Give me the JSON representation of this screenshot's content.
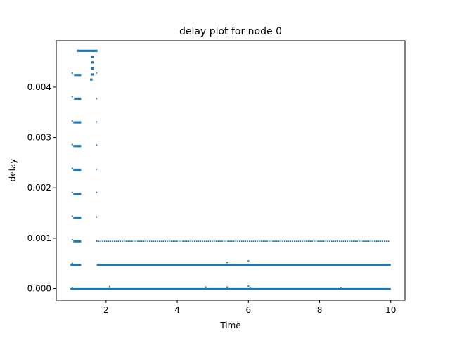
{
  "chart_data": {
    "type": "scatter",
    "title": "delay plot for node 0",
    "xlabel": "Time",
    "ylabel": "delay",
    "xlim": [
      0.6,
      10.4
    ],
    "ylim": [
      -0.00023,
      0.00492
    ],
    "xticks": [
      2,
      4,
      6,
      8,
      10
    ],
    "xtick_labels": [
      "2",
      "4",
      "6",
      "8",
      "10"
    ],
    "yticks": [
      0.0,
      0.001,
      0.002,
      0.003,
      0.004
    ],
    "ytick_labels": [
      "0.000",
      "0.001",
      "0.002",
      "0.003",
      "0.004"
    ],
    "grid": false,
    "legend": "none",
    "marker_color": "#1f77b4",
    "series": [
      {
        "description_bands": "horizontal bands of dense points (start, end, delay)",
        "bands": [
          {
            "x": [
              1.0,
              10.0
            ],
            "y": 0.0
          },
          {
            "x": [
              1.74,
              10.0
            ],
            "y": 0.00047
          },
          {
            "x": [
              1.0,
              1.3
            ],
            "y": 0.00047
          },
          {
            "x": [
              1.74,
              9.95
            ],
            "y": 0.00094,
            "sparse": true
          },
          {
            "x": [
              1.08,
              1.3
            ],
            "y": 0.00094
          },
          {
            "x": [
              1.08,
              1.3
            ],
            "y": 0.00141
          },
          {
            "x": [
              1.08,
              1.3
            ],
            "y": 0.00188
          },
          {
            "x": [
              1.08,
              1.3
            ],
            "y": 0.00236
          },
          {
            "x": [
              1.08,
              1.3
            ],
            "y": 0.00283
          },
          {
            "x": [
              1.08,
              1.3
            ],
            "y": 0.0033
          },
          {
            "x": [
              1.1,
              1.3
            ],
            "y": 0.00377
          },
          {
            "x": [
              1.1,
              1.3
            ],
            "y": 0.00424
          },
          {
            "x": [
              1.18,
              1.76
            ],
            "y": 0.00472
          },
          {
            "x": [
              1.58,
              1.65
            ],
            "y": 0.0046
          },
          {
            "x": [
              1.58,
              1.65
            ],
            "y": 0.00449
          },
          {
            "x": [
              1.58,
              1.65
            ],
            "y": 0.00437
          },
          {
            "x": [
              1.58,
              1.65
            ],
            "y": 0.00425
          },
          {
            "x": [
              1.55,
              1.62
            ],
            "y": 0.00415
          }
        ],
        "points": [
          [
            1.05,
            0.00428
          ],
          [
            1.05,
            0.00381
          ],
          [
            1.05,
            0.00333
          ],
          [
            1.05,
            0.00286
          ],
          [
            1.05,
            0.00239
          ],
          [
            1.05,
            0.00191
          ],
          [
            1.05,
            0.00144
          ],
          [
            1.05,
            0.00097
          ],
          [
            1.05,
            0.0005
          ],
          [
            1.05,
            2e-05
          ],
          [
            1.73,
            0.00428
          ],
          [
            1.73,
            0.00377
          ],
          [
            1.73,
            0.00331
          ],
          [
            1.73,
            0.00285
          ],
          [
            1.73,
            0.00237
          ],
          [
            1.73,
            0.00191
          ],
          [
            1.73,
            0.00142
          ],
          [
            1.73,
            0.00095
          ],
          [
            2.1,
            4e-05
          ],
          [
            4.8,
            3e-05
          ],
          [
            5.4,
            0.00052
          ],
          [
            5.4,
            3e-05
          ],
          [
            6.0,
            0.00055
          ],
          [
            6.0,
            5e-05
          ],
          [
            6.05,
            2e-05
          ],
          [
            8.5,
            0.00095
          ],
          [
            8.6,
            2e-05
          ],
          [
            9.6,
            0.00094
          ]
        ]
      }
    ]
  }
}
